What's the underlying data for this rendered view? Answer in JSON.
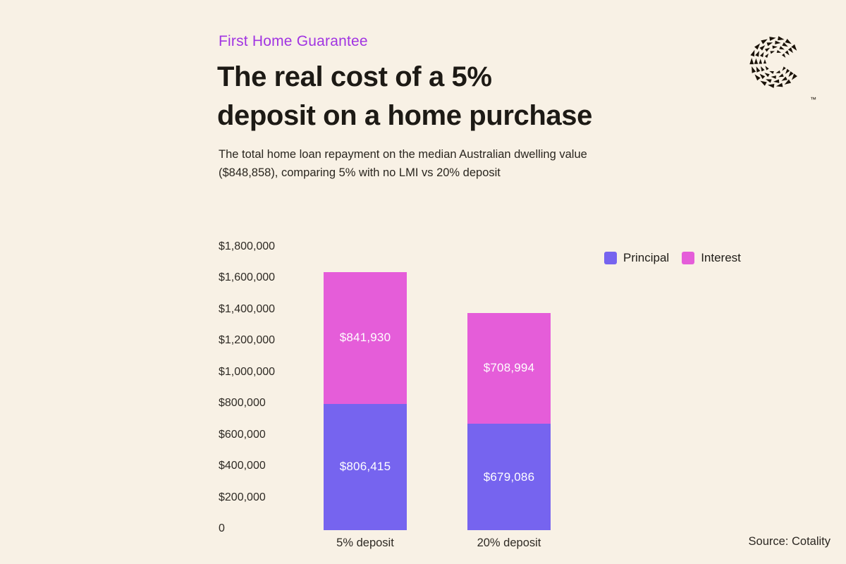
{
  "page": {
    "background": "#F8F1E5"
  },
  "header": {
    "eyebrow": "First Home Guarantee",
    "eyebrow_color": "#A134E2",
    "title": "The real cost of a 5% deposit on a home purchase",
    "title_lines": [
      "The real cost of a 5%",
      "deposit on a home purchase"
    ],
    "subtitle": "The total home loan repayment on the median Australian dwelling value ($848,858), comparing 5% with no LMI vs 20% deposit",
    "subtitle_lines": [
      "The total home loan repayment on the median Australian dwelling value",
      "($848,858), comparing 5% with no LMI vs 20% deposit"
    ]
  },
  "brand": {
    "logo": "cotality-mark",
    "tm": "™"
  },
  "footer": {
    "source": "Source: Cotality"
  },
  "chart_data": {
    "type": "bar",
    "stacked": true,
    "categories": [
      "5% deposit",
      "20% deposit"
    ],
    "series": [
      {
        "name": "Principal",
        "color": "#7664EF",
        "values": [
          806415,
          679086
        ],
        "labels": [
          "$806,415",
          "$679,086"
        ]
      },
      {
        "name": "Interest",
        "color": "#E55DD9",
        "values": [
          841930,
          708994
        ],
        "labels": [
          "$841,930",
          "$708,994"
        ]
      }
    ],
    "totals": [
      1648345,
      1388080
    ],
    "xlabel": "",
    "ylabel": "",
    "ylim": [
      0,
      1800000
    ],
    "ytick_step": 200000,
    "yticks": [
      "$1,800,000",
      "$1,600,000",
      "$1,400,000",
      "$1,200,000",
      "$1,000,000",
      "$800,000",
      "$600,000",
      "$400,000",
      "$200,000",
      "0"
    ],
    "grid": false,
    "legend_position": "top-right",
    "value_label_color": "#FFFFFF"
  }
}
